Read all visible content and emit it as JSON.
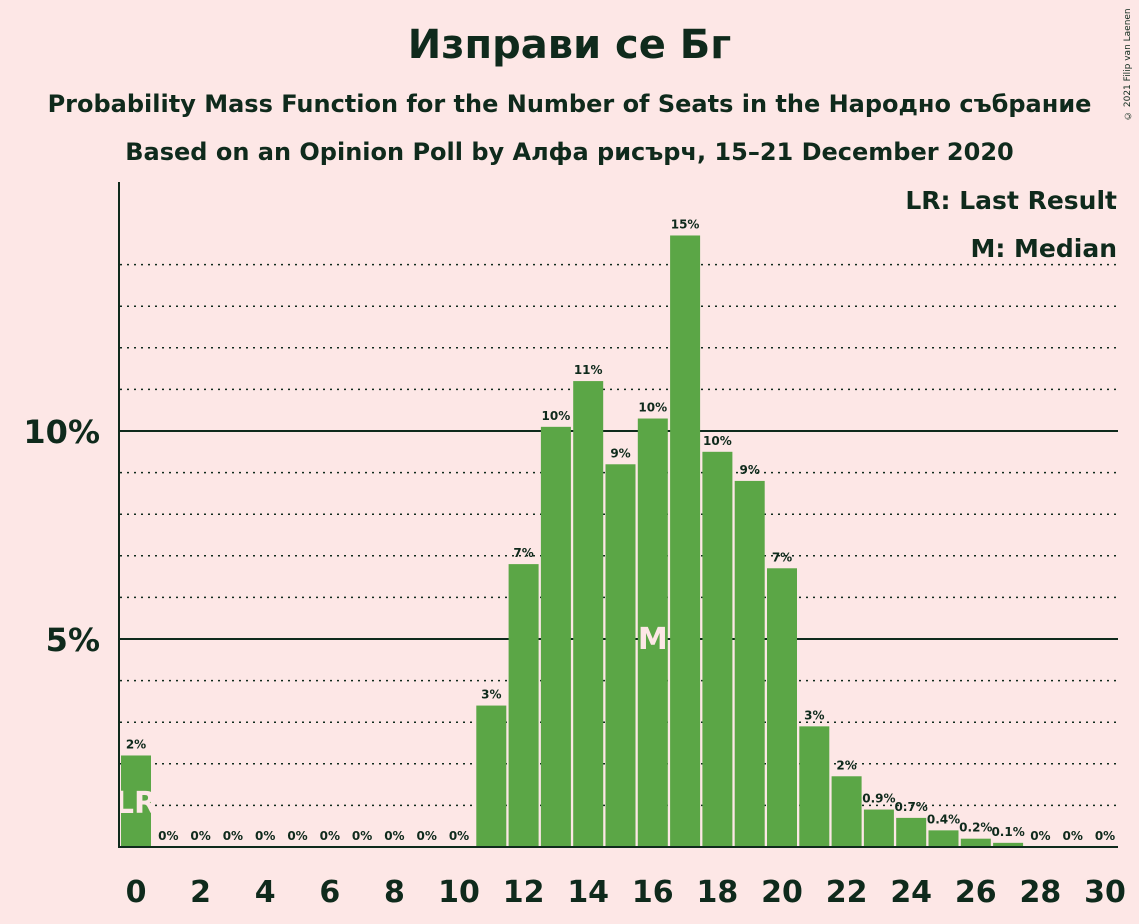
{
  "chart_data": {
    "type": "bar",
    "title": "Изправи се Бг",
    "subtitle_1": "Probability Mass Function for the Number of Seats in the Народно събрание",
    "subtitle_2": "Based on an Opinion Poll by Алфа рисърч, 15–21 December 2020",
    "copyright": "© 2021 Filip van Laenen",
    "legend": {
      "last_result": "LR: Last Result",
      "median": "M: Median",
      "placement": "top-right"
    },
    "bar_color": "#5ba646",
    "ylim": [
      0,
      15.5
    ],
    "y_ticks": [
      {
        "value": 5,
        "label": "5%"
      },
      {
        "value": 10,
        "label": "10%"
      }
    ],
    "x_ticks": [
      0,
      2,
      4,
      6,
      8,
      10,
      12,
      14,
      16,
      18,
      20,
      22,
      24,
      26,
      28,
      30
    ],
    "x_tick_labels": [
      "0",
      "2",
      "4",
      "6",
      "8",
      "10",
      "12",
      "14",
      "16",
      "18",
      "20",
      "22",
      "24",
      "26",
      "28",
      "30"
    ],
    "categories": [
      0,
      1,
      2,
      3,
      4,
      5,
      6,
      7,
      8,
      9,
      10,
      11,
      12,
      13,
      14,
      15,
      16,
      17,
      18,
      19,
      20,
      21,
      22,
      23,
      24,
      25,
      26,
      27,
      28,
      29,
      30
    ],
    "values": [
      2.2,
      0,
      0,
      0,
      0,
      0,
      0,
      0,
      0,
      0,
      0,
      3.4,
      6.8,
      10.1,
      11.2,
      9.2,
      10.3,
      14.7,
      9.5,
      8.8,
      6.7,
      2.9,
      1.7,
      0.9,
      0.7,
      0.4,
      0.2,
      0.1,
      0,
      0,
      0
    ],
    "data_labels": [
      "2%",
      "0%",
      "0%",
      "0%",
      "0%",
      "0%",
      "0%",
      "0%",
      "0%",
      "0%",
      "0%",
      "3%",
      "7%",
      "10%",
      "11%",
      "9%",
      "10%",
      "15%",
      "10%",
      "9%",
      "7%",
      "3%",
      "2%",
      "0.9%",
      "0.7%",
      "0.4%",
      "0.2%",
      "0.1%",
      "0%",
      "0%",
      "0%"
    ],
    "markers": [
      {
        "seats": 0,
        "label": "LR"
      },
      {
        "seats": 16,
        "label": "M"
      }
    ],
    "grid": "dotted every 1%, solid at 5% and 10%"
  }
}
